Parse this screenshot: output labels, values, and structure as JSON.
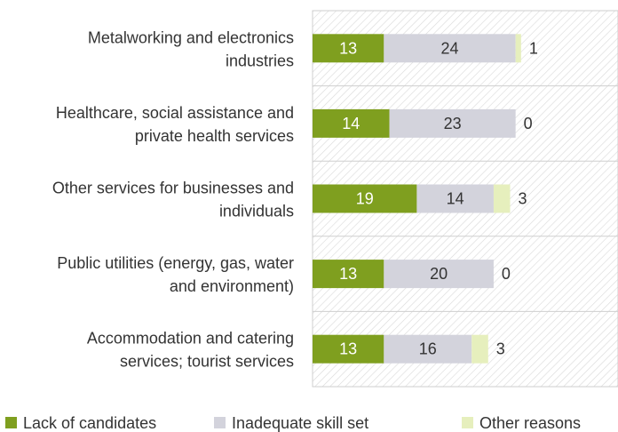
{
  "chart_data": {
    "type": "bar",
    "orientation": "horizontal",
    "stacked": true,
    "categories": [
      [
        "Metalworking and electronics",
        "industries"
      ],
      [
        "Healthcare, social assistance and",
        "private health services"
      ],
      [
        "Other services for businesses and",
        "individuals"
      ],
      [
        "Public utilities (energy, gas, water",
        "and environment)"
      ],
      [
        "Accommodation and catering",
        "services; tourist services"
      ]
    ],
    "series": [
      {
        "name": "Lack of candidates",
        "values": [
          13,
          14,
          19,
          13,
          13
        ],
        "color": "#7f9f1f",
        "label_color": "#ffffff"
      },
      {
        "name": "Inadequate skill set",
        "values": [
          24,
          23,
          14,
          20,
          16
        ],
        "color": "#d3d3dc",
        "label_color": "#333333"
      },
      {
        "name": "Other reasons",
        "values": [
          1,
          0,
          3,
          0,
          3
        ],
        "color": "#e6efbd",
        "label_color": "#333333"
      }
    ],
    "xlim": [
      0,
      55
    ],
    "grid": false,
    "legend": "bottom",
    "plot_background": "hatched-gray"
  }
}
